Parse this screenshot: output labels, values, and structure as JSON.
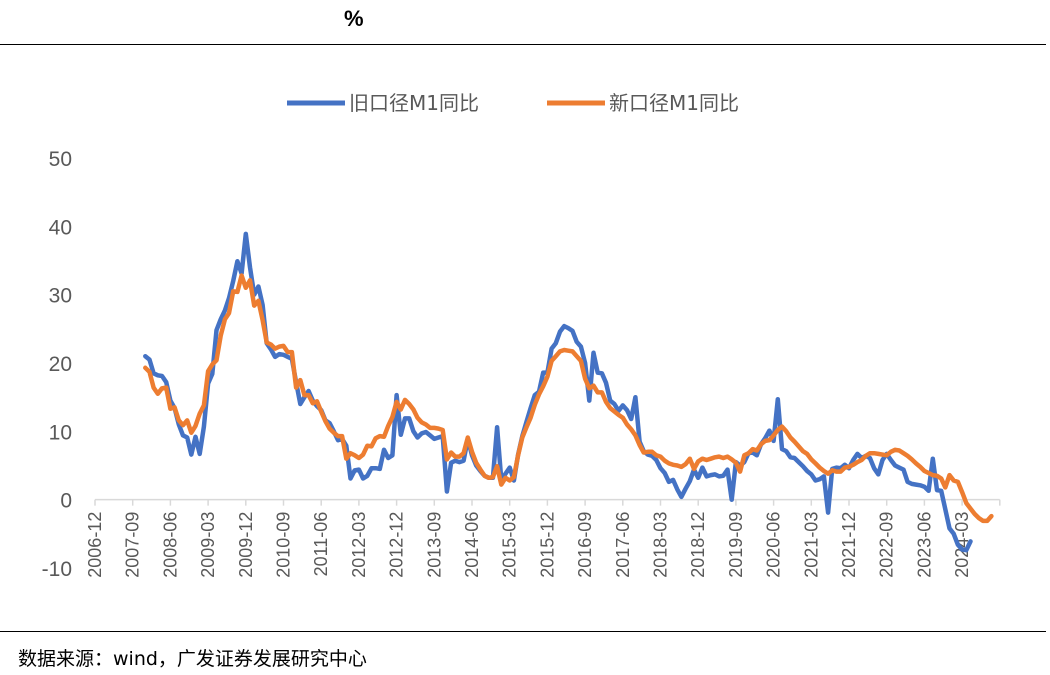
{
  "header": {
    "unit": "%"
  },
  "footer": {
    "source": "数据来源：wind，广发证券发展研究中心"
  },
  "chart_data": {
    "type": "line",
    "title": "",
    "xlabel": "",
    "ylabel": "",
    "ylim": [
      -10,
      50
    ],
    "yticks": [
      "50",
      "40",
      "30",
      "20",
      "10",
      "0",
      "-10"
    ],
    "grid": false,
    "legend_position": "top",
    "x_start": "2007-12",
    "x_end": "2024-10",
    "x_ticks": [
      "2006-12",
      "2007-09",
      "2008-06",
      "2009-03",
      "2009-12",
      "2010-09",
      "2011-06",
      "2012-03",
      "2012-12",
      "2013-09",
      "2014-06",
      "2015-03",
      "2015-12",
      "2016-09",
      "2017-06",
      "2018-03",
      "2018-12",
      "2019-09",
      "2020-06",
      "2021-03",
      "2021-12",
      "2022-09",
      "2023-06",
      "2024-03"
    ],
    "series": [
      {
        "name": "旧口径M1同比",
        "color": "#4472C4",
        "values": [
          21.0,
          20.5,
          18.5,
          18.2,
          18.1,
          17.2,
          14.5,
          13.4,
          11.0,
          9.4,
          9.1,
          6.6,
          9.2,
          6.7,
          10.7,
          17.0,
          18.4,
          24.8,
          26.4,
          27.7,
          29.5,
          32.0,
          34.9,
          33.1,
          38.9,
          34.0,
          30.0,
          31.2,
          28.5,
          22.9,
          22.0,
          20.9,
          21.3,
          21.2,
          20.9,
          20.6,
          17.2,
          14.0,
          15.0,
          15.9,
          14.5,
          13.7,
          13.1,
          11.6,
          11.2,
          10.0,
          8.7,
          8.9,
          7.9,
          3.1,
          4.3,
          4.4,
          3.1,
          3.5,
          4.6,
          4.6,
          4.5,
          7.3,
          6.1,
          6.5,
          15.3,
          9.5,
          11.9,
          11.9,
          10.0,
          9.1,
          9.7,
          9.9,
          9.4,
          8.9,
          9.1,
          9.3,
          1.2,
          5.4,
          5.7,
          5.5,
          5.7,
          8.9,
          6.5,
          5.0,
          4.2,
          3.5,
          3.2,
          3.2,
          10.6,
          2.9,
          3.8,
          4.7,
          2.8,
          6.6,
          9.3,
          11.4,
          13.4,
          15.3,
          15.8,
          18.6,
          18.6,
          22.1,
          22.9,
          24.6,
          25.4,
          25.1,
          24.7,
          23.1,
          22.4,
          20.0,
          14.5,
          21.5,
          18.6,
          18.5,
          17.1,
          14.5,
          14.0,
          13.0,
          13.8,
          13.1,
          11.8,
          15.0,
          8.5,
          7.1,
          6.6,
          6.4,
          5.8,
          4.6,
          3.9,
          2.6,
          2.9,
          1.5,
          0.4,
          1.6,
          2.7,
          4.4,
          3.2,
          4.7,
          3.4,
          3.6,
          3.7,
          3.4,
          3.5,
          4.4,
          0.0,
          5.5,
          5.0,
          5.5,
          6.8,
          6.9,
          6.5,
          8.1,
          9.0,
          10.1,
          8.6,
          14.7,
          7.4,
          7.1,
          6.2,
          6.1,
          5.5,
          4.9,
          4.2,
          3.7,
          2.8,
          3.0,
          3.4,
          -1.9,
          4.5,
          4.7,
          4.6,
          5.1,
          4.6,
          5.8,
          6.7,
          6.1,
          6.4,
          6.1,
          4.6,
          3.7,
          5.8,
          6.7,
          5.8,
          5.0,
          4.7,
          4.4,
          2.6,
          2.3,
          2.2,
          2.1,
          1.9,
          1.3,
          6.0,
          1.4,
          1.3,
          -1.4,
          -4.2,
          -5.0,
          -6.6,
          -7.3,
          -7.4,
          -6.1
        ]
      },
      {
        "name": "新口径M1同比",
        "color": "#ED7D31",
        "values": [
          19.3,
          18.7,
          16.4,
          15.5,
          16.3,
          16.4,
          13.3,
          13.5,
          11.6,
          10.9,
          11.6,
          9.8,
          10.8,
          12.6,
          13.8,
          18.8,
          19.8,
          20.4,
          24.0,
          26.4,
          27.3,
          30.5,
          30.4,
          32.8,
          31.0,
          32.1,
          28.4,
          29.1,
          26.3,
          23.0,
          22.7,
          22.1,
          22.4,
          22.5,
          21.6,
          21.6,
          16.4,
          17.5,
          15.3,
          15.3,
          14.1,
          14.4,
          12.9,
          11.5,
          10.4,
          9.8,
          9.3,
          9.3,
          6.0,
          6.8,
          6.5,
          6.1,
          6.6,
          7.9,
          7.8,
          9.0,
          9.3,
          9.2,
          10.8,
          12.1,
          14.3,
          13.2,
          14.6,
          14.0,
          13.2,
          12.0,
          11.3,
          11.0,
          10.5,
          10.5,
          10.4,
          10.2,
          5.9,
          6.9,
          6.3,
          6.3,
          6.8,
          9.1,
          7.0,
          5.4,
          4.4,
          3.5,
          3.2,
          3.3,
          4.9,
          2.2,
          3.2,
          2.8,
          3.3,
          6.5,
          9.1,
          10.6,
          12.0,
          13.9,
          15.4,
          16.6,
          18.0,
          20.3,
          21.0,
          21.7,
          21.9,
          21.8,
          21.7,
          21.0,
          20.3,
          17.7,
          16.3,
          16.7,
          15.7,
          15.7,
          14.3,
          13.4,
          12.9,
          12.4,
          12.0,
          11.0,
          10.3,
          9.4,
          8.0,
          6.9,
          7.0,
          7.0,
          6.5,
          6.3,
          5.7,
          5.3,
          5.1,
          5.0,
          4.8,
          5.2,
          6.0,
          4.5,
          5.6,
          6.0,
          5.8,
          6.0,
          6.2,
          6.3,
          6.1,
          6.3,
          5.9,
          5.4,
          4.1,
          6.5,
          6.8,
          7.4,
          7.2,
          8.1,
          8.6,
          8.7,
          9.4,
          10.2,
          10.7,
          10.0,
          9.1,
          8.5,
          7.8,
          7.1,
          6.7,
          5.9,
          5.3,
          4.7,
          4.2,
          3.8,
          4.3,
          4.1,
          4.1,
          4.7,
          4.8,
          5.1,
          5.5,
          5.8,
          6.4,
          6.8,
          6.8,
          6.7,
          6.6,
          6.5,
          7.0,
          7.3,
          7.2,
          6.8,
          6.4,
          5.9,
          5.3,
          4.8,
          4.2,
          3.9,
          3.6,
          3.5,
          3.1,
          1.8,
          3.6,
          2.8,
          2.6,
          1.1,
          -0.5,
          -1.3,
          -2.1,
          -2.7,
          -3.1,
          -3.1,
          -2.4
        ]
      }
    ]
  }
}
